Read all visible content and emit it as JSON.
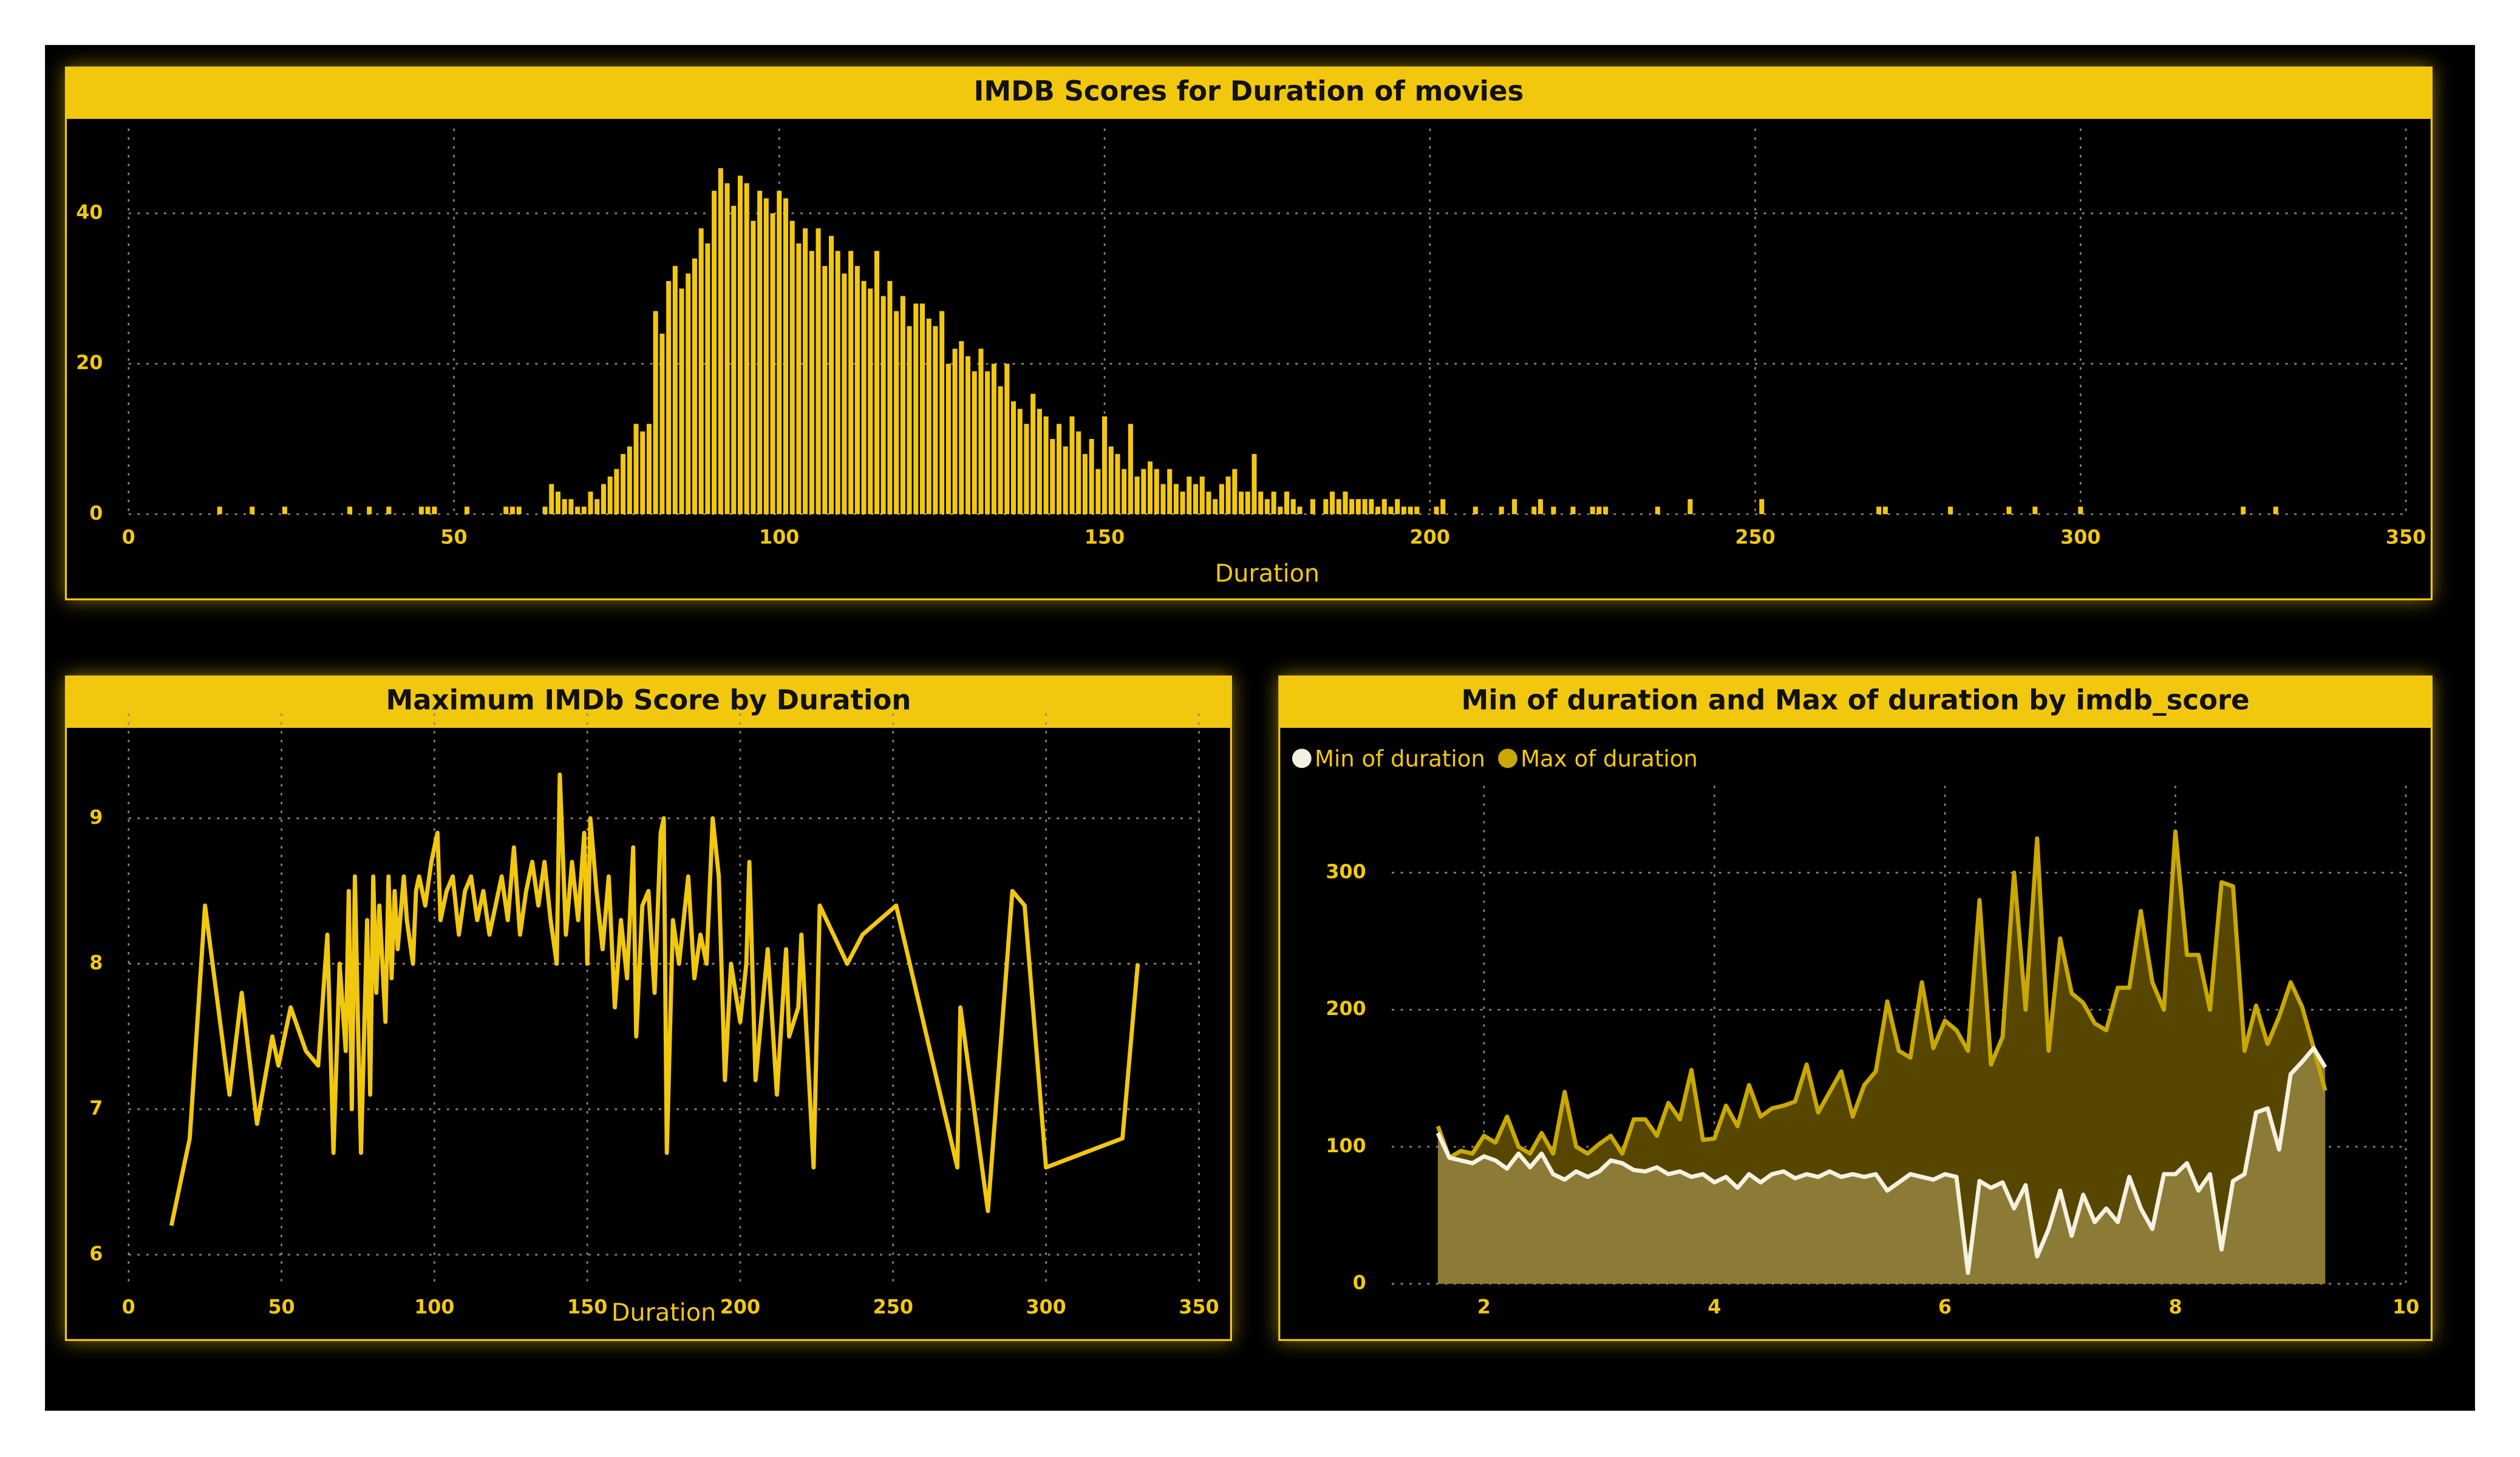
{
  "chart_data": [
    {
      "type": "bar",
      "title": "IMDB Scores for Duration of movies",
      "x_label": "Duration",
      "color": "#f2c80f",
      "grid": true,
      "xlim": [
        0,
        350
      ],
      "xticks": [
        0,
        50,
        100,
        150,
        200,
        250,
        300,
        350
      ],
      "ylim": [
        0,
        47
      ],
      "yticks": [
        0,
        20,
        40
      ],
      "x": [
        14,
        19,
        24,
        34,
        37,
        40,
        45,
        46,
        47,
        52,
        58,
        59,
        60,
        64,
        65,
        66,
        67,
        68,
        69,
        70,
        71,
        72,
        73,
        74,
        75,
        76,
        77,
        78,
        79,
        80,
        81,
        82,
        83,
        84,
        85,
        86,
        87,
        88,
        89,
        90,
        91,
        92,
        93,
        94,
        95,
        96,
        97,
        98,
        99,
        100,
        101,
        102,
        103,
        104,
        105,
        106,
        107,
        108,
        109,
        110,
        111,
        112,
        113,
        114,
        115,
        116,
        117,
        118,
        119,
        120,
        121,
        122,
        123,
        124,
        125,
        126,
        127,
        128,
        129,
        130,
        131,
        132,
        133,
        134,
        135,
        136,
        137,
        138,
        139,
        140,
        141,
        142,
        143,
        144,
        145,
        146,
        147,
        148,
        149,
        150,
        151,
        152,
        153,
        154,
        155,
        156,
        157,
        158,
        159,
        160,
        161,
        162,
        163,
        164,
        165,
        166,
        167,
        168,
        169,
        170,
        171,
        172,
        173,
        174,
        175,
        176,
        177,
        178,
        179,
        180,
        182,
        184,
        185,
        186,
        187,
        188,
        189,
        190,
        191,
        192,
        193,
        194,
        195,
        196,
        197,
        198,
        201,
        202,
        207,
        211,
        213,
        216,
        217,
        219,
        222,
        225,
        226,
        227,
        235,
        240,
        251,
        269,
        270,
        280,
        289,
        293,
        300,
        325,
        330
      ],
      "values": [
        1,
        1,
        1,
        1,
        1,
        1,
        1,
        1,
        1,
        1,
        1,
        1,
        1,
        1,
        4,
        3,
        2,
        2,
        1,
        1,
        3,
        2,
        4,
        5,
        6,
        8,
        9,
        12,
        11,
        12,
        27,
        24,
        31,
        33,
        30,
        32,
        34,
        38,
        36,
        43,
        46,
        44,
        41,
        45,
        44,
        39,
        43,
        42,
        40,
        43,
        42,
        39,
        36,
        38,
        35,
        38,
        33,
        37,
        35,
        32,
        35,
        33,
        31,
        30,
        35,
        29,
        31,
        27,
        29,
        25,
        28,
        28,
        26,
        25,
        27,
        20,
        22,
        23,
        21,
        19,
        22,
        19,
        20,
        17,
        20,
        15,
        14,
        12,
        16,
        14,
        13,
        10,
        12,
        9,
        13,
        11,
        8,
        10,
        6,
        13,
        9,
        8,
        6,
        12,
        5,
        6,
        7,
        6,
        4,
        6,
        4,
        3,
        5,
        4,
        5,
        3,
        2,
        4,
        5,
        6,
        3,
        3,
        8,
        3,
        2,
        3,
        1,
        3,
        2,
        1,
        2,
        2,
        3,
        2,
        3,
        2,
        2,
        2,
        2,
        1,
        2,
        1,
        2,
        1,
        1,
        1,
        1,
        2,
        1,
        1,
        2,
        1,
        2,
        1,
        1,
        1,
        1,
        1,
        1,
        2,
        2,
        1,
        1,
        1,
        1,
        1,
        1,
        1,
        1
      ]
    },
    {
      "type": "line",
      "title": "Maximum IMDb Score by Duration",
      "x_label": "Duration",
      "color": "#f2c80f",
      "grid": true,
      "xlim": [
        0,
        350
      ],
      "xticks": [
        0,
        50,
        100,
        150,
        200,
        250,
        300,
        350
      ],
      "ylim": [
        5.8,
        9.5
      ],
      "yticks": [
        6,
        7,
        8,
        9
      ],
      "x": [
        14,
        20,
        25,
        33,
        37,
        42,
        47,
        49,
        53,
        58,
        62,
        65,
        67,
        69,
        71,
        72,
        73,
        74,
        75,
        76,
        78,
        79,
        80,
        81,
        82,
        84,
        85,
        86,
        87,
        88,
        90,
        91,
        93,
        94,
        95,
        97,
        99,
        101,
        102,
        104,
        106,
        108,
        110,
        112,
        114,
        116,
        118,
        120,
        122,
        124,
        126,
        128,
        130,
        132,
        134,
        136,
        138,
        140,
        141,
        143,
        145,
        147,
        149,
        150,
        151,
        153,
        155,
        157,
        159,
        161,
        163,
        165,
        166,
        168,
        170,
        172,
        174,
        175,
        176,
        178,
        180,
        183,
        185,
        187,
        189,
        191,
        193,
        195,
        197,
        200,
        202,
        203,
        205,
        209,
        212,
        215,
        216,
        219,
        220,
        224,
        226,
        235,
        240,
        251,
        271,
        272,
        281,
        289,
        293,
        300,
        325,
        330
      ],
      "values": [
        6.2,
        6.8,
        8.4,
        7.1,
        7.8,
        6.9,
        7.5,
        7.3,
        7.7,
        7.4,
        7.3,
        8.2,
        6.7,
        8.0,
        7.4,
        8.5,
        7.0,
        8.6,
        7.6,
        6.7,
        8.3,
        7.1,
        8.6,
        7.8,
        8.4,
        7.6,
        8.6,
        7.9,
        8.5,
        8.1,
        8.6,
        8.3,
        8.0,
        8.5,
        8.6,
        8.4,
        8.7,
        8.9,
        8.3,
        8.5,
        8.6,
        8.2,
        8.5,
        8.6,
        8.3,
        8.5,
        8.2,
        8.4,
        8.6,
        8.3,
        8.8,
        8.2,
        8.5,
        8.7,
        8.4,
        8.7,
        8.3,
        8.0,
        9.3,
        8.2,
        8.7,
        8.3,
        8.9,
        8.0,
        9.0,
        8.5,
        8.1,
        8.6,
        7.7,
        8.3,
        7.9,
        8.8,
        7.5,
        8.4,
        8.5,
        7.8,
        8.9,
        9.0,
        6.7,
        8.3,
        8.0,
        8.6,
        7.9,
        8.2,
        8.0,
        9.0,
        8.6,
        7.2,
        8.0,
        7.6,
        8.0,
        8.7,
        7.2,
        8.1,
        7.1,
        8.1,
        7.5,
        7.7,
        8.2,
        6.6,
        8.4,
        8.0,
        8.2,
        8.4,
        6.6,
        7.7,
        6.3,
        8.5,
        8.4,
        6.6,
        6.8,
        8.0
      ]
    },
    {
      "type": "area",
      "title": "Min of duration and Max of duration by imdb_score",
      "grid": true,
      "xlim": [
        1.2,
        10
      ],
      "xticks": [
        2,
        4,
        6,
        8,
        10
      ],
      "ylim": [
        0,
        340
      ],
      "yticks": [
        0,
        100,
        200,
        300
      ],
      "x": [
        1.6,
        1.7,
        1.8,
        1.9,
        2.0,
        2.1,
        2.2,
        2.3,
        2.4,
        2.5,
        2.6,
        2.7,
        2.8,
        2.9,
        3.0,
        3.1,
        3.2,
        3.3,
        3.4,
        3.5,
        3.6,
        3.7,
        3.8,
        3.9,
        4.0,
        4.1,
        4.2,
        4.3,
        4.4,
        4.5,
        4.6,
        4.7,
        4.8,
        4.9,
        5.0,
        5.1,
        5.2,
        5.3,
        5.4,
        5.5,
        5.6,
        5.7,
        5.8,
        5.9,
        6.0,
        6.1,
        6.2,
        6.3,
        6.4,
        6.5,
        6.6,
        6.7,
        6.8,
        6.9,
        7.0,
        7.1,
        7.2,
        7.3,
        7.4,
        7.5,
        7.6,
        7.7,
        7.8,
        7.9,
        8.0,
        8.1,
        8.2,
        8.3,
        8.4,
        8.5,
        8.6,
        8.7,
        8.8,
        8.9,
        9.0,
        9.1,
        9.2,
        9.3
      ],
      "series": [
        {
          "name": "Min of duration",
          "color": "#f5f1e0",
          "fill": "#8c7b36",
          "values": [
            110,
            92,
            90,
            88,
            93,
            90,
            84,
            95,
            85,
            95,
            80,
            76,
            82,
            78,
            82,
            90,
            88,
            83,
            82,
            85,
            80,
            82,
            78,
            80,
            74,
            78,
            70,
            80,
            74,
            80,
            82,
            77,
            80,
            78,
            82,
            78,
            80,
            78,
            80,
            68,
            74,
            80,
            78,
            76,
            80,
            78,
            8,
            75,
            70,
            74,
            55,
            72,
            20,
            40,
            68,
            35,
            65,
            45,
            55,
            45,
            78,
            55,
            40,
            80,
            80,
            88,
            68,
            80,
            25,
            75,
            80,
            125,
            128,
            98,
            153,
            162,
            172,
            158
          ]
        },
        {
          "name": "Max of duration",
          "color": "#c9a800",
          "fill": "#574600",
          "values": [
            115,
            92,
            97,
            95,
            108,
            103,
            122,
            100,
            95,
            110,
            95,
            140,
            100,
            95,
            102,
            108,
            95,
            120,
            120,
            108,
            132,
            120,
            156,
            105,
            106,
            130,
            115,
            145,
            122,
            128,
            130,
            133,
            160,
            125,
            140,
            155,
            122,
            145,
            155,
            206,
            170,
            165,
            220,
            172,
            192,
            185,
            170,
            280,
            160,
            180,
            300,
            200,
            325,
            170,
            252,
            212,
            205,
            190,
            185,
            216,
            216,
            272,
            220,
            200,
            330,
            240,
            240,
            200,
            293,
            290,
            170,
            203,
            175,
            195,
            220,
            202,
            172,
            141
          ]
        }
      ]
    }
  ]
}
